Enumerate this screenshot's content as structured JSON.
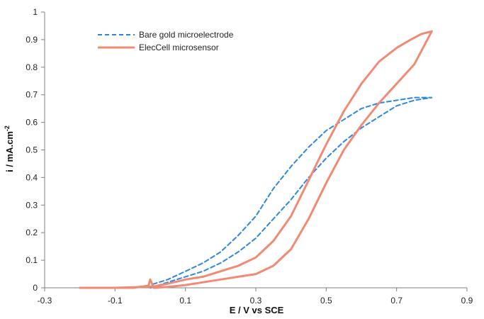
{
  "chart_data": {
    "type": "line",
    "title": "",
    "xlabel": "E / V vs SCE",
    "ylabel": "i / mA.cm",
    "ylabel_superscript": "-2",
    "xlim": [
      -0.3,
      0.9
    ],
    "ylim": [
      0,
      1
    ],
    "x_ticks": [
      "-0.3",
      "-0.1",
      "0.1",
      "0.3",
      "0.5",
      "0.7",
      "0.9"
    ],
    "y_ticks": [
      "0",
      "0.1",
      "0.2",
      "0.3",
      "0.4",
      "0.5",
      "0.6",
      "0.7",
      "0.8",
      "0.9",
      "1"
    ],
    "grid": false,
    "legend_position": "top-left",
    "series": [
      {
        "name": "Bare gold microelectrode",
        "color": "#2e86de",
        "style": "dashed",
        "points": [
          [
            0.0,
            0.0
          ],
          [
            0.05,
            0.02
          ],
          [
            0.1,
            0.04
          ],
          [
            0.15,
            0.06
          ],
          [
            0.2,
            0.09
          ],
          [
            0.25,
            0.13
          ],
          [
            0.3,
            0.18
          ],
          [
            0.35,
            0.25
          ],
          [
            0.4,
            0.32
          ],
          [
            0.45,
            0.4
          ],
          [
            0.5,
            0.47
          ],
          [
            0.55,
            0.53
          ],
          [
            0.6,
            0.58
          ],
          [
            0.65,
            0.62
          ],
          [
            0.7,
            0.66
          ],
          [
            0.75,
            0.68
          ],
          [
            0.8,
            0.69
          ],
          [
            0.78,
            0.69
          ],
          [
            0.75,
            0.69
          ],
          [
            0.7,
            0.68
          ],
          [
            0.65,
            0.67
          ],
          [
            0.6,
            0.65
          ],
          [
            0.55,
            0.61
          ],
          [
            0.5,
            0.57
          ],
          [
            0.45,
            0.51
          ],
          [
            0.4,
            0.44
          ],
          [
            0.35,
            0.36
          ],
          [
            0.3,
            0.26
          ],
          [
            0.25,
            0.19
          ],
          [
            0.2,
            0.13
          ],
          [
            0.15,
            0.09
          ],
          [
            0.1,
            0.06
          ],
          [
            0.05,
            0.03
          ],
          [
            0.0,
            0.01
          ]
        ]
      },
      {
        "name": "ElecCell microsensor",
        "color": "#f08a75",
        "style": "solid",
        "points": [
          [
            -0.2,
            0.0
          ],
          [
            -0.15,
            0.0
          ],
          [
            -0.1,
            0.0
          ],
          [
            -0.05,
            0.0
          ],
          [
            -0.02,
            0.005
          ],
          [
            -0.005,
            0.008
          ],
          [
            0.0,
            0.03
          ],
          [
            0.005,
            0.015
          ],
          [
            0.01,
            0.0
          ],
          [
            0.05,
            0.003
          ],
          [
            0.1,
            0.01
          ],
          [
            0.15,
            0.02
          ],
          [
            0.2,
            0.03
          ],
          [
            0.25,
            0.04
          ],
          [
            0.3,
            0.05
          ],
          [
            0.35,
            0.08
          ],
          [
            0.4,
            0.14
          ],
          [
            0.45,
            0.25
          ],
          [
            0.5,
            0.38
          ],
          [
            0.55,
            0.5
          ],
          [
            0.6,
            0.59
          ],
          [
            0.65,
            0.67
          ],
          [
            0.7,
            0.74
          ],
          [
            0.75,
            0.81
          ],
          [
            0.8,
            0.93
          ],
          [
            0.77,
            0.92
          ],
          [
            0.74,
            0.9
          ],
          [
            0.7,
            0.87
          ],
          [
            0.65,
            0.82
          ],
          [
            0.6,
            0.74
          ],
          [
            0.55,
            0.64
          ],
          [
            0.5,
            0.52
          ],
          [
            0.45,
            0.39
          ],
          [
            0.4,
            0.26
          ],
          [
            0.35,
            0.17
          ],
          [
            0.3,
            0.11
          ],
          [
            0.25,
            0.08
          ],
          [
            0.2,
            0.06
          ],
          [
            0.15,
            0.04
          ],
          [
            0.1,
            0.03
          ],
          [
            0.05,
            0.015
          ],
          [
            0.01,
            0.005
          ],
          [
            -0.05,
            0.002
          ],
          [
            -0.1,
            0.0
          ],
          [
            -0.2,
            0.0
          ]
        ]
      }
    ]
  }
}
